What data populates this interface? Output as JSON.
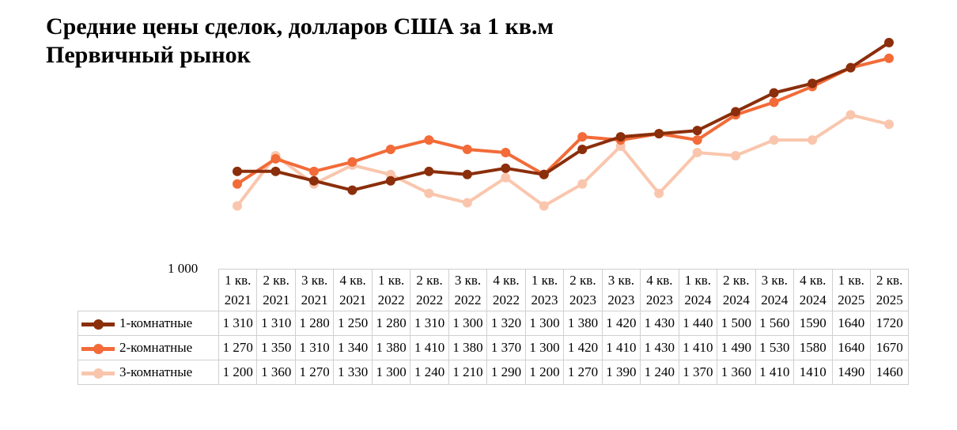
{
  "title": [
    "Средние цены сделок, долларов США за 1 кв.м",
    "Первичный рынок"
  ],
  "chart_data": {
    "type": "line",
    "title": "Средние цены сделок, долларов США за 1 кв.м Первичный рынок",
    "ytick": "1 000",
    "ylim": [
      1000,
      1760
    ],
    "categories": [
      [
        "1 кв.",
        "2021"
      ],
      [
        "2 кв.",
        "2021"
      ],
      [
        "3 кв.",
        "2021"
      ],
      [
        "4 кв.",
        "2021"
      ],
      [
        "1 кв.",
        "2022"
      ],
      [
        "2 кв.",
        "2022"
      ],
      [
        "3 кв.",
        "2022"
      ],
      [
        "4 кв.",
        "2022"
      ],
      [
        "1 кв.",
        "2023"
      ],
      [
        "2 кв.",
        "2023"
      ],
      [
        "3 кв.",
        "2023"
      ],
      [
        "4 кв.",
        "2023"
      ],
      [
        "1 кв.",
        "2024"
      ],
      [
        "2 кв.",
        "2024"
      ],
      [
        "3 кв.",
        "2024"
      ],
      [
        "4 кв.",
        "2024"
      ],
      [
        "1 кв.",
        "2025"
      ],
      [
        "2 кв.",
        "2025"
      ]
    ],
    "series": [
      {
        "name": "1-комнатные",
        "color": "#8B2E0B",
        "values": [
          1310,
          1310,
          1280,
          1250,
          1280,
          1310,
          1300,
          1320,
          1300,
          1380,
          1420,
          1430,
          1440,
          1500,
          1560,
          1590,
          1640,
          1720
        ],
        "labels": [
          "1 310",
          "1 310",
          "1 280",
          "1 250",
          "1 280",
          "1 310",
          "1 300",
          "1 320",
          "1 300",
          "1 380",
          "1 420",
          "1 430",
          "1 440",
          "1 500",
          "1 560",
          "1590",
          "1640",
          "1720"
        ]
      },
      {
        "name": "2-комнатные",
        "color": "#F26B38",
        "values": [
          1270,
          1350,
          1310,
          1340,
          1380,
          1410,
          1380,
          1370,
          1300,
          1420,
          1410,
          1430,
          1410,
          1490,
          1530,
          1580,
          1640,
          1670
        ],
        "labels": [
          "1 270",
          "1 350",
          "1 310",
          "1 340",
          "1 380",
          "1 410",
          "1 380",
          "1 370",
          "1 300",
          "1 420",
          "1 410",
          "1 430",
          "1 410",
          "1 490",
          "1 530",
          "1580",
          "1640",
          "1670"
        ]
      },
      {
        "name": "3-комнатные",
        "color": "#F9C6AD",
        "values": [
          1200,
          1360,
          1270,
          1330,
          1300,
          1240,
          1210,
          1290,
          1200,
          1270,
          1390,
          1240,
          1370,
          1360,
          1410,
          1410,
          1490,
          1460
        ],
        "labels": [
          "1 200",
          "1 360",
          "1 270",
          "1 330",
          "1 300",
          "1 240",
          "1 210",
          "1 290",
          "1 200",
          "1 270",
          "1 390",
          "1 240",
          "1 370",
          "1 360",
          "1 410",
          "1410",
          "1490",
          "1460"
        ]
      }
    ],
    "legend": "data-table"
  }
}
